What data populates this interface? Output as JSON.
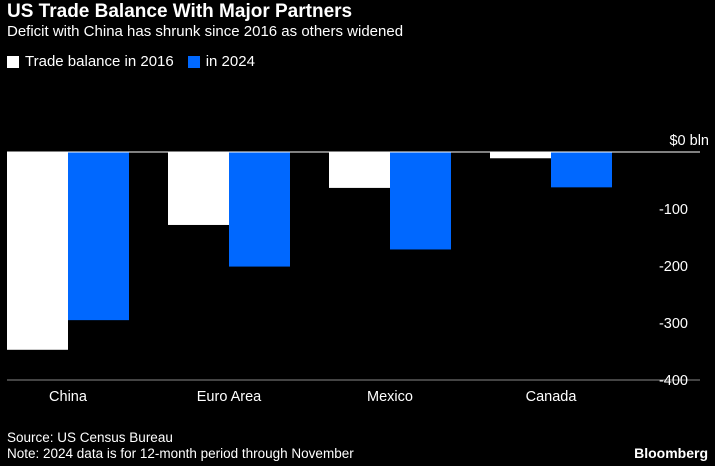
{
  "header": {
    "title": "US Trade Balance With Major Partners",
    "subtitle": "Deficit with China has shrunk since 2016 as others widened"
  },
  "legend": [
    {
      "label": "Trade balance in 2016",
      "color": "#ffffff"
    },
    {
      "label": "in 2024",
      "color": "#0068ff"
    }
  ],
  "chart_data": {
    "type": "bar",
    "title": "US Trade Balance With Major Partners",
    "subtitle": "Deficit with China has shrunk since 2016 as others widened",
    "categories": [
      "China",
      "Euro Area",
      "Mexico",
      "Canada"
    ],
    "series": [
      {
        "name": "Trade balance in 2016",
        "color": "#ffffff",
        "values": [
          -347,
          -128,
          -63,
          -11
        ]
      },
      {
        "name": "in 2024",
        "color": "#0068ff",
        "values": [
          -295,
          -201,
          -171,
          -62
        ]
      }
    ],
    "ylim": [
      -400,
      0
    ],
    "yticks": [
      0,
      -100,
      -200,
      -300,
      -400
    ],
    "ytick_labels": [
      "$0 bln",
      "-100",
      "-200",
      "-300",
      "-400"
    ],
    "axis_side": "right",
    "legend_position": "top-left"
  },
  "footer": {
    "source": "Source: US Census Bureau",
    "note": "Note: 2024 data is for 12-month period through November"
  },
  "brand": "Bloomberg"
}
